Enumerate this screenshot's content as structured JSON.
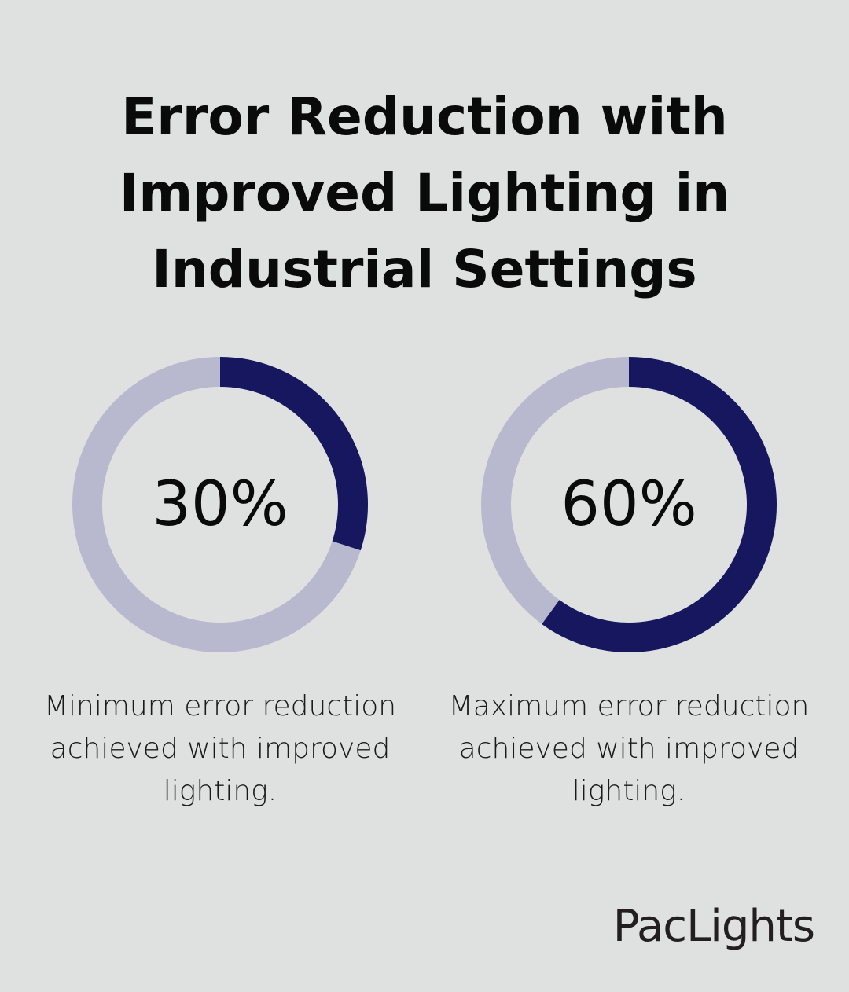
{
  "title": "Error Reduction with Improved Lighting in Industrial Settings",
  "colors": {
    "filled": "#171760",
    "track": "#b8b9cf",
    "background": "#dfe1e0"
  },
  "chart_data": [
    {
      "type": "pie",
      "subtype": "donut",
      "value": 30,
      "max": 100,
      "label": "30%",
      "description": "Minimum error reduction achieved with improved lighting."
    },
    {
      "type": "pie",
      "subtype": "donut",
      "value": 60,
      "max": 100,
      "label": "60%",
      "description": "Maximum error reduction achieved with improved lighting."
    }
  ],
  "logo": "PacLights"
}
